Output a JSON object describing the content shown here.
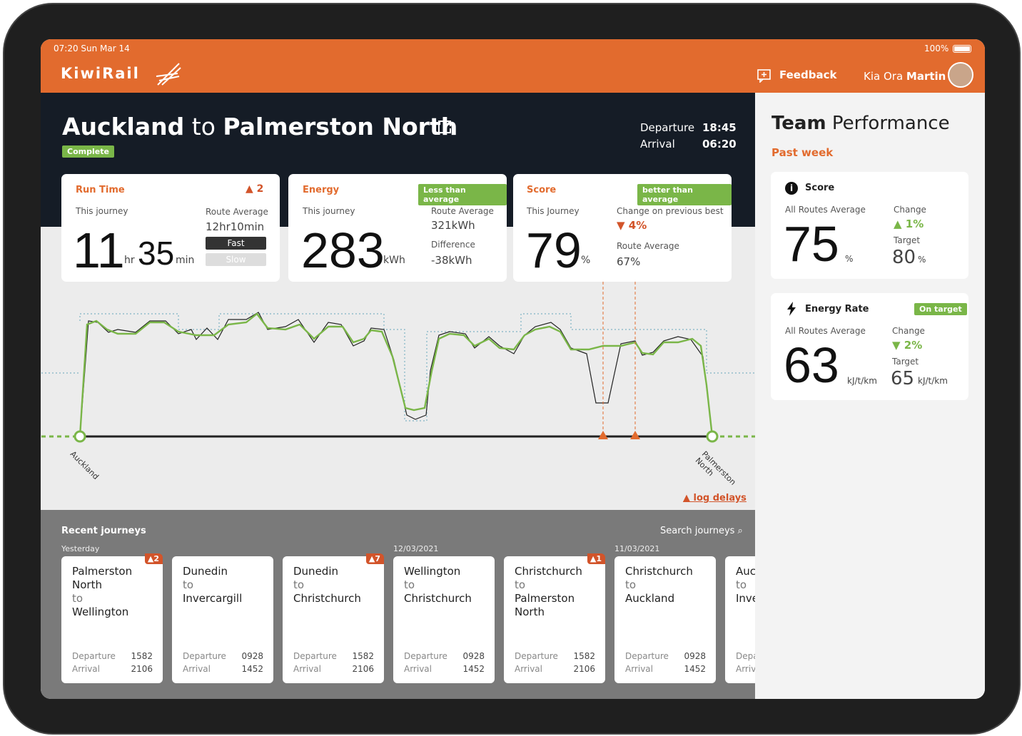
{
  "status_bar": {
    "time": "07:20 Sun  Mar 14",
    "battery": "100%"
  },
  "header": {
    "logo": "KiwiRail",
    "feedback": "Feedback",
    "greeting": "Kia Ora",
    "user": "Martin"
  },
  "journey": {
    "from": "Auckland",
    "to_word": "to",
    "to": "Palmerston North",
    "status": "Complete",
    "departure_label": "Departure",
    "departure": "18:45",
    "arrival_label": "Arrival",
    "arrival": "06:20"
  },
  "run_time": {
    "title": "Run Time",
    "alerts": "2",
    "this_label": "This journey",
    "hours": "11",
    "hours_unit": "hr",
    "minutes": "35",
    "minutes_unit": "min",
    "avg_label": "Route Average",
    "avg": "12hr10min",
    "fast": "Fast",
    "slow": "Slow"
  },
  "energy": {
    "title": "Energy",
    "badge": "Less than average",
    "this_label": "This journey",
    "value": "283",
    "unit": "kWh",
    "avg_label": "Route Average",
    "avg": "321kWh",
    "diff_label": "Difference",
    "diff": "-38kWh"
  },
  "score": {
    "title": "Score",
    "badge": "better than average",
    "this_label": "This Journey",
    "value": "79",
    "unit": "%",
    "change_label": "Change on previous best",
    "change": "4%",
    "avg_label": "Route Average",
    "avg": "67%"
  },
  "profile": {
    "start": "Auckland",
    "end": "Palmerston North",
    "log_delays": "log delays"
  },
  "recent": {
    "title": "Recent journeys",
    "search": "Search journeys",
    "journeys": [
      {
        "date": "Yesterday",
        "from": "Palmerston North",
        "to_word": "to",
        "to": "Wellington",
        "alerts": "2",
        "departure_label": "Departure",
        "departure": "1582",
        "arrival_label": "Arrival",
        "arrival": "2106"
      },
      {
        "from": "Dunedin",
        "to_word": "to",
        "to": "Invercargill",
        "departure_label": "Departure",
        "departure": "0928",
        "arrival_label": "Arrival",
        "arrival": "1452"
      },
      {
        "from": "Dunedin",
        "to_word": "to",
        "to": "Christchurch",
        "alerts": "7",
        "departure_label": "Departure",
        "departure": "1582",
        "arrival_label": "Arrival",
        "arrival": "2106"
      },
      {
        "date": "12/03/2021",
        "from": "Wellington",
        "to_word": "to",
        "to": "Christchurch",
        "departure_label": "Departure",
        "departure": "0928",
        "arrival_label": "Arrival",
        "arrival": "1452"
      },
      {
        "from": "Christchurch",
        "to_word": "to",
        "to": "Palmerston North",
        "alerts": "1",
        "departure_label": "Departure",
        "departure": "1582",
        "arrival_label": "Arrival",
        "arrival": "2106"
      },
      {
        "date": "11/03/2021",
        "from": "Christchurch",
        "to_word": "to",
        "to": "Auckland",
        "departure_label": "Departure",
        "departure": "0928",
        "arrival_label": "Arrival",
        "arrival": "1452"
      },
      {
        "from": "Auckland",
        "to_word": "to",
        "to": "Invercargill",
        "departure_label": "Departure",
        "arrival_label": "Arrival"
      }
    ]
  },
  "team": {
    "title_bold": "Team",
    "title_light": "Performance",
    "period": "Past week",
    "score": {
      "title": "Score",
      "avg_label": "All Routes Average",
      "value": "75",
      "unit": "%",
      "change_label": "Change",
      "change": "1%",
      "target_label": "Target",
      "target": "80",
      "target_unit": "%"
    },
    "energy_rate": {
      "title": "Energy Rate",
      "badge": "On target",
      "avg_label": "All Routes Average",
      "value": "63",
      "unit": "kJ/t/km",
      "change_label": "Change",
      "change": "2%",
      "target_label": "Target",
      "target": "65",
      "target_unit": "kJ/t/km"
    }
  }
}
